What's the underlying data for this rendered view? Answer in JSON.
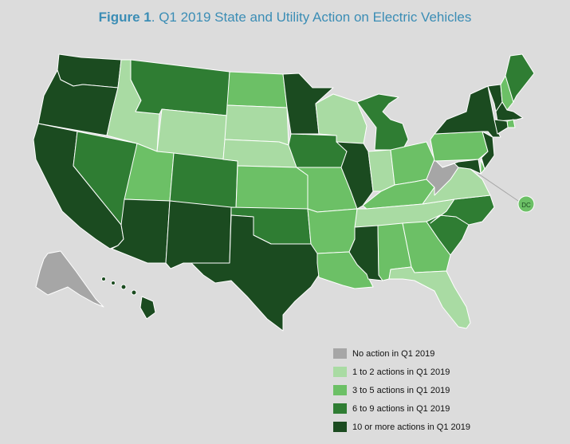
{
  "title": {
    "bold": "Figure 1",
    "rest": ". Q1 2019 State and Utility Action on Electric Vehicles"
  },
  "colors": {
    "none": "#a6a6a6",
    "c1": "#a9dba3",
    "c2": "#6cc066",
    "c3": "#2f7d33",
    "c4": "#1b4b20",
    "border": "#ffffff"
  },
  "legend": [
    {
      "label": "No action in Q1 2019",
      "cls": "none"
    },
    {
      "label": "1 to 2 actions in Q1 2019",
      "cls": "c1"
    },
    {
      "label": "3 to 5 actions in Q1 2019",
      "cls": "c2"
    },
    {
      "label": "6 to 9 actions in Q1 2019",
      "cls": "c3"
    },
    {
      "label": "10 or more actions in Q1 2019",
      "cls": "c4"
    }
  ],
  "map_data": {
    "states": {
      "WA": "c4",
      "OR": "c4",
      "CA": "c4",
      "NV": "c3",
      "ID": "c1",
      "MT": "c3",
      "WY": "c1",
      "UT": "c2",
      "AZ": "c4",
      "CO": "c3",
      "NM": "c4",
      "ND": "c2",
      "SD": "c1",
      "NE": "c1",
      "KS": "c2",
      "OK": "c3",
      "TX": "c4",
      "MN": "c4",
      "IA": "c3",
      "MO": "c2",
      "AR": "c2",
      "LA": "c2",
      "WI": "c1",
      "IL": "c4",
      "MI": "c3",
      "IN": "c1",
      "OH": "c2",
      "KY": "c2",
      "TN": "c1",
      "MS": "c4",
      "AL": "c2",
      "GA": "c2",
      "FL": "c1",
      "SC": "c3",
      "NC": "c3",
      "VA": "c1",
      "WV": "none",
      "PA": "c2",
      "NY": "c4",
      "VT": "c4",
      "NH": "c2",
      "ME": "c3",
      "MA": "c4",
      "RI": "c2",
      "CT": "c4",
      "NJ": "c4",
      "DE": "c2",
      "MD": "c4",
      "AK": "none",
      "HI": "c4",
      "DC": "c2"
    },
    "dc_label": "DC"
  }
}
